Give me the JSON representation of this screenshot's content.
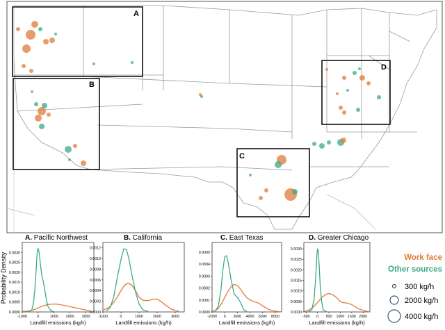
{
  "map": {
    "region_labels": [
      "A",
      "B",
      "C",
      "D"
    ]
  },
  "legend": {
    "work_face": "Work face",
    "other_sources": "Other sources",
    "sizes": [
      "300 kg/h",
      "2000 kg/h",
      "4000 kg/h"
    ],
    "colors": {
      "work_face": "#e07b39",
      "other_sources": "#3aaa85"
    }
  },
  "y_axis_label": "Probability Density",
  "chart_data": [
    {
      "type": "line",
      "title_letter": "A.",
      "title": "Pacific Northwest",
      "xlabel": "Landfill emissions (kg/h)",
      "ylabel": "Probability Density",
      "xlim": [
        -1000,
        3500
      ],
      "ylim": [
        0,
        0.0035
      ],
      "xticks": [
        "-1000",
        "0",
        "1000",
        "2000",
        "3000"
      ],
      "yticks": [
        "0.0000",
        "0.0005",
        "0.0010",
        "0.0015",
        "0.0020",
        "0.0025",
        "0.0030"
      ],
      "series": [
        {
          "name": "Work face",
          "x": [
            -1000,
            -700,
            -400,
            -200,
            0,
            200,
            400,
            600,
            800,
            1000,
            1200,
            1500,
            1800,
            2100,
            2500,
            2900,
            3300
          ],
          "y": [
            2e-05,
            4e-05,
            8e-05,
            0.00013,
            0.0002,
            0.00027,
            0.00033,
            0.00037,
            0.00039,
            0.0004,
            0.00039,
            0.00035,
            0.0003,
            0.00025,
            0.00018,
            0.00011,
            5e-05
          ]
        },
        {
          "name": "Other sources",
          "x": [
            -600,
            -400,
            -300,
            -200,
            -120,
            -60,
            0,
            60,
            140,
            220,
            300,
            400,
            500,
            600,
            800,
            1000
          ],
          "y": [
            1e-05,
            0.0001,
            0.0004,
            0.0012,
            0.0022,
            0.003,
            0.0032,
            0.003,
            0.0024,
            0.0019,
            0.0016,
            0.0012,
            0.0007,
            0.0003,
            6e-05,
            1e-05
          ]
        }
      ]
    },
    {
      "type": "line",
      "title_letter": "B.",
      "title": "California",
      "xlabel": "Landfill emissions (kg/h)",
      "xlim": [
        -1000,
        3500
      ],
      "ylim": [
        0,
        0.0013
      ],
      "xticks": [
        "-1000",
        "0",
        "1000",
        "2000",
        "3000"
      ],
      "yticks": [
        "0.0000",
        "0.0002",
        "0.0004",
        "0.0006",
        "0.0008",
        "0.0010",
        "0.0012"
      ],
      "series": [
        {
          "name": "Work face",
          "x": [
            -1000,
            -800,
            -600,
            -400,
            -200,
            0,
            200,
            400,
            600,
            800,
            1000,
            1200,
            1500,
            1800,
            2000,
            2200,
            2500,
            2800,
            3200
          ],
          "y": [
            3e-05,
            6e-05,
            0.0001,
            0.00018,
            0.00028,
            0.0004,
            0.0005,
            0.00054,
            0.0005,
            0.0004,
            0.00028,
            0.00022,
            0.00021,
            0.00024,
            0.00024,
            0.0002,
            0.00012,
            5e-05,
            1e-05
          ]
        },
        {
          "name": "Other sources",
          "x": [
            -800,
            -600,
            -400,
            -200,
            0,
            150,
            300,
            450,
            600,
            800,
            1000,
            1200,
            1500
          ],
          "y": [
            2e-05,
            8e-05,
            0.00028,
            0.00065,
            0.00098,
            0.00118,
            0.00117,
            0.00098,
            0.0007,
            0.00038,
            0.00015,
            4e-05,
            1e-05
          ]
        }
      ]
    },
    {
      "type": "line",
      "title_letter": "C.",
      "title": "East Texas",
      "xlabel": "Landfill emissions (kg/h)",
      "xlim": [
        -2000,
        9000
      ],
      "ylim": [
        0,
        0.00058
      ],
      "xticks": [
        "-2000",
        "0",
        "2000",
        "4000",
        "6000",
        "8000"
      ],
      "yticks": [
        "0.0000",
        "0.0001",
        "0.0002",
        "0.0003",
        "0.0004",
        "0.0005"
      ],
      "series": [
        {
          "name": "Work face",
          "x": [
            -2000,
            -1500,
            -1000,
            -500,
            0,
            500,
            1000,
            1500,
            2000,
            2500,
            3000,
            3500,
            4000,
            4500,
            5000,
            5500,
            6000,
            7000,
            8000,
            9000
          ],
          "y": [
            4e-06,
            1e-05,
            3e-05,
            7e-05,
            0.00012,
            0.00017,
            0.00021,
            0.00023,
            0.00022,
            0.00019,
            0.00015,
            0.00012,
            0.0001,
            9e-05,
            8e-05,
            7e-05,
            5e-05,
            2e-05,
            6e-06,
            1e-06
          ]
        },
        {
          "name": "Other sources",
          "x": [
            -1500,
            -1000,
            -600,
            -300,
            0,
            300,
            600,
            1000,
            1500,
            2000,
            2500,
            3000,
            3500
          ],
          "y": [
            5e-06,
            5e-05,
            0.00018,
            0.00035,
            0.00046,
            0.00047,
            0.0004,
            0.00027,
            0.00015,
            0.00012,
            8e-05,
            2e-05,
            3e-06
          ]
        }
      ]
    },
    {
      "type": "line",
      "title_letter": "D.",
      "title": "Greater Chicago",
      "xlabel": "Landfill emissions (kg/h)",
      "xlim": [
        -600,
        2300
      ],
      "ylim": [
        0,
        0.0033
      ],
      "xticks": [
        "-500",
        "0",
        "500",
        "1000",
        "1500",
        "2000"
      ],
      "yticks": [
        "0.0000",
        "0.0005",
        "0.0010",
        "0.0015",
        "0.0020",
        "0.0025",
        "0.0030"
      ],
      "series": [
        {
          "name": "Work face",
          "x": [
            -600,
            -400,
            -200,
            0,
            200,
            400,
            500,
            600,
            800,
            1000,
            1100,
            1300,
            1500,
            1800,
            2100,
            2300
          ],
          "y": [
            2e-05,
            8e-05,
            0.00022,
            0.00045,
            0.0007,
            0.00085,
            0.00087,
            0.00085,
            0.00072,
            0.0005,
            0.00045,
            0.00042,
            0.00035,
            0.00015,
            4e-05,
            1e-05
          ]
        },
        {
          "name": "Other sources",
          "x": [
            -400,
            -250,
            -150,
            -80,
            -30,
            0,
            30,
            70,
            120,
            180,
            250,
            400
          ],
          "y": [
            1e-05,
            0.0001,
            0.0006,
            0.0016,
            0.0027,
            0.003,
            0.0029,
            0.0023,
            0.0012,
            0.0005,
            0.0001,
            1e-05
          ]
        }
      ]
    }
  ]
}
